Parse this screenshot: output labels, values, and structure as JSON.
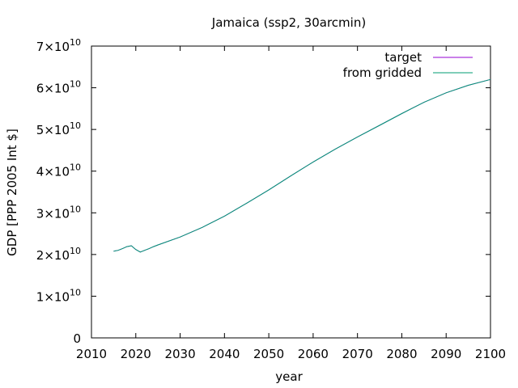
{
  "chart_data": {
    "type": "line",
    "title": "Jamaica (ssp2, 30arcmin)",
    "xlabel": "year",
    "ylabel": "GDP [PPP 2005 Int $]",
    "xlim": [
      2010,
      2100
    ],
    "ylim": [
      0,
      70000000000
    ],
    "xticks": [
      2010,
      2020,
      2030,
      2040,
      2050,
      2060,
      2070,
      2080,
      2090,
      2100
    ],
    "xtick_labels": [
      "2010",
      "2020",
      "2030",
      "2040",
      "2050",
      "2060",
      "2070",
      "2080",
      "2090",
      "2100"
    ],
    "yticks": [
      0,
      10000000000,
      20000000000,
      30000000000,
      40000000000,
      50000000000,
      60000000000,
      70000000000
    ],
    "ytick_labels": [
      {
        "mantissa": "0",
        "exponent": ""
      },
      {
        "mantissa": "1×10",
        "exponent": "10"
      },
      {
        "mantissa": "2×10",
        "exponent": "10"
      },
      {
        "mantissa": "3×10",
        "exponent": "10"
      },
      {
        "mantissa": "4×10",
        "exponent": "10"
      },
      {
        "mantissa": "5×10",
        "exponent": "10"
      },
      {
        "mantissa": "6×10",
        "exponent": "10"
      },
      {
        "mantissa": "7×10",
        "exponent": "10"
      }
    ],
    "grid": false,
    "legend_position": "top-right",
    "series": [
      {
        "name": "target",
        "color": "#9400d3",
        "x": [
          2015,
          2016,
          2017,
          2018,
          2019,
          2020,
          2021,
          2022,
          2023,
          2024,
          2025,
          2030,
          2035,
          2040,
          2045,
          2050,
          2055,
          2060,
          2065,
          2070,
          2075,
          2080,
          2085,
          2090,
          2095,
          2100
        ],
        "y": [
          20800000000,
          21000000000,
          21400000000,
          21900000000,
          22100000000,
          21200000000,
          20600000000,
          21000000000,
          21400000000,
          21900000000,
          22300000000,
          24200000000,
          26500000000,
          29200000000,
          32300000000,
          35500000000,
          38900000000,
          42200000000,
          45300000000,
          48200000000,
          51000000000,
          53800000000,
          56500000000,
          58800000000,
          60600000000,
          62000000000
        ]
      },
      {
        "name": "from gridded",
        "color": "#009e73",
        "x": [
          2015,
          2016,
          2017,
          2018,
          2019,
          2020,
          2021,
          2022,
          2023,
          2024,
          2025,
          2030,
          2035,
          2040,
          2045,
          2050,
          2055,
          2060,
          2065,
          2070,
          2075,
          2080,
          2085,
          2090,
          2095,
          2100
        ],
        "y": [
          20800000000,
          21000000000,
          21400000000,
          21900000000,
          22100000000,
          21200000000,
          20600000000,
          21000000000,
          21400000000,
          21900000000,
          22300000000,
          24200000000,
          26500000000,
          29200000000,
          32300000000,
          35500000000,
          38900000000,
          42200000000,
          45300000000,
          48200000000,
          51000000000,
          53800000000,
          56500000000,
          58800000000,
          60600000000,
          62000000000
        ]
      }
    ]
  }
}
